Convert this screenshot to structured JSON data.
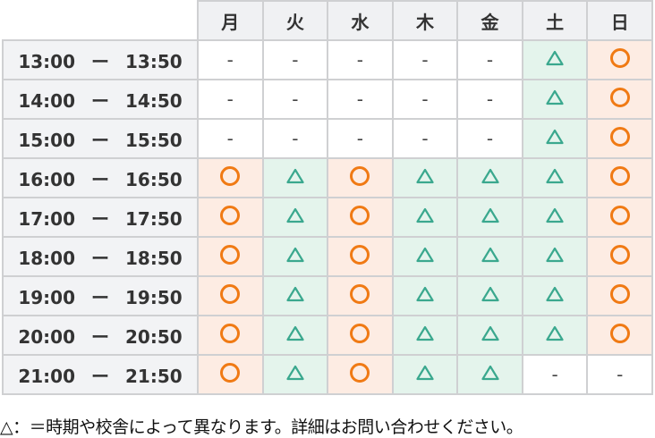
{
  "days": [
    "月",
    "火",
    "水",
    "木",
    "金",
    "土",
    "日"
  ],
  "rows": [
    {
      "start": "13:00",
      "sep": "ー",
      "end": "13:50",
      "cells": [
        "-",
        "-",
        "-",
        "-",
        "-",
        "△",
        "○"
      ]
    },
    {
      "start": "14:00",
      "sep": "ー",
      "end": "14:50",
      "cells": [
        "-",
        "-",
        "-",
        "-",
        "-",
        "△",
        "○"
      ]
    },
    {
      "start": "15:00",
      "sep": "ー",
      "end": "15:50",
      "cells": [
        "-",
        "-",
        "-",
        "-",
        "-",
        "△",
        "○"
      ]
    },
    {
      "start": "16:00",
      "sep": "ー",
      "end": "16:50",
      "cells": [
        "○",
        "△",
        "○",
        "△",
        "△",
        "△",
        "○"
      ]
    },
    {
      "start": "17:00",
      "sep": "ー",
      "end": "17:50",
      "cells": [
        "○",
        "△",
        "○",
        "△",
        "△",
        "△",
        "○"
      ]
    },
    {
      "start": "18:00",
      "sep": "ー",
      "end": "18:50",
      "cells": [
        "○",
        "△",
        "○",
        "△",
        "△",
        "△",
        "○"
      ]
    },
    {
      "start": "19:00",
      "sep": "ー",
      "end": "19:50",
      "cells": [
        "○",
        "△",
        "○",
        "△",
        "△",
        "△",
        "○"
      ]
    },
    {
      "start": "20:00",
      "sep": "ー",
      "end": "20:50",
      "cells": [
        "○",
        "△",
        "○",
        "△",
        "△",
        "△",
        "○"
      ]
    },
    {
      "start": "21:00",
      "sep": "ー",
      "end": "21:50",
      "cells": [
        "○",
        "△",
        "○",
        "△",
        "△",
        "-",
        "-"
      ]
    }
  ],
  "note": "△：＝時期や校舎によって異なります。詳細はお問い合わせください。",
  "colors": {
    "circle": "#f07a14",
    "circle_bg": "#fdece3",
    "triangle": "#3aa88e",
    "triangle_bg": "#e4f4ec"
  },
  "icons": {
    "○": "circle-icon",
    "△": "triangle-icon"
  }
}
